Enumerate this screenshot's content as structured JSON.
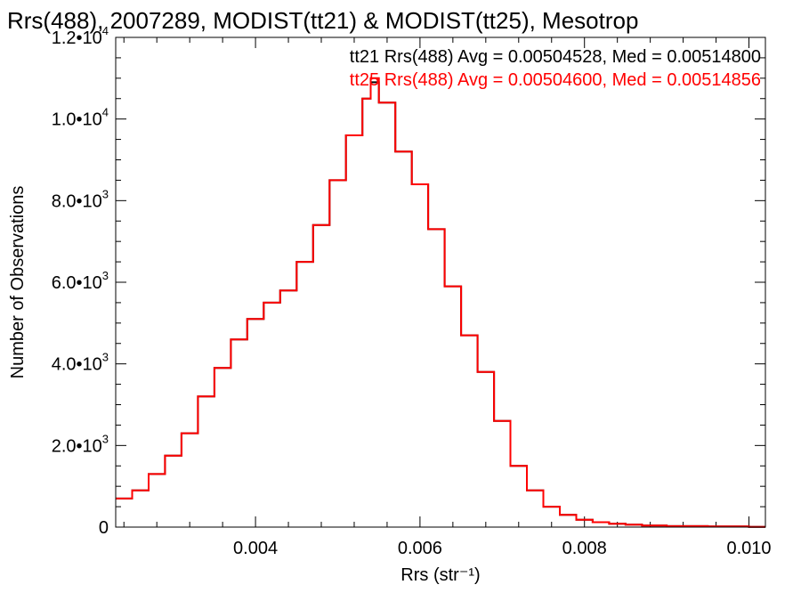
{
  "chart_data": {
    "type": "line",
    "title": "Rrs(488), 2007289, MODIST(tt21) & MODIST(tt25), Mesotrop",
    "xlabel": "Rrs (str⁻¹)",
    "ylabel": "Number of Observations",
    "xlim": [
      0.0023,
      0.0102
    ],
    "ylim": [
      0,
      12000
    ],
    "x_ticks": [
      {
        "value": 0.004,
        "label": "0.004"
      },
      {
        "value": 0.006,
        "label": "0.006"
      },
      {
        "value": 0.008,
        "label": "0.008"
      },
      {
        "value": 0.01,
        "label": "0.010"
      }
    ],
    "y_ticks": [
      {
        "value": 0,
        "mantissa": "0",
        "exponent": ""
      },
      {
        "value": 2000,
        "mantissa": "2.0•10",
        "exponent": "3"
      },
      {
        "value": 4000,
        "mantissa": "4.0•10",
        "exponent": "3"
      },
      {
        "value": 6000,
        "mantissa": "6.0•10",
        "exponent": "3"
      },
      {
        "value": 8000,
        "mantissa": "8.0•10",
        "exponent": "3"
      },
      {
        "value": 10000,
        "mantissa": "1.0•10",
        "exponent": "4"
      },
      {
        "value": 12000,
        "mantissa": "1.2•10",
        "exponent": "4"
      }
    ],
    "grid": false,
    "legend_placement": "top-right",
    "series": [
      {
        "name": "tt21",
        "color": "#000000",
        "label": "tt21 Rrs(488) Avg = 0.00504528, Med = 0.00514800",
        "x": [
          0.0023,
          0.0025,
          0.0027,
          0.0029,
          0.0031,
          0.0033,
          0.0035,
          0.0037,
          0.0039,
          0.0041,
          0.0043,
          0.0045,
          0.0047,
          0.0049,
          0.0051,
          0.0053,
          0.0054,
          0.0055,
          0.0057,
          0.0059,
          0.0061,
          0.0063,
          0.0065,
          0.0067,
          0.0069,
          0.0071,
          0.0073,
          0.0075,
          0.0077,
          0.0079,
          0.0081,
          0.0083,
          0.0085,
          0.0087,
          0.009,
          0.0095,
          0.01,
          0.0102
        ],
        "y": [
          700,
          900,
          1300,
          1750,
          2300,
          3200,
          3900,
          4600,
          5100,
          5500,
          5800,
          6500,
          7400,
          8500,
          9600,
          10500,
          10900,
          10400,
          9200,
          8400,
          7300,
          5900,
          4700,
          3800,
          2600,
          1500,
          900,
          500,
          300,
          180,
          120,
          80,
          60,
          40,
          25,
          15,
          5,
          5
        ]
      },
      {
        "name": "tt25",
        "color": "#ff0000",
        "label": "tt25 Rrs(488) Avg = 0.00504600, Med = 0.00514856",
        "x": [
          0.0023,
          0.0025,
          0.0027,
          0.0029,
          0.0031,
          0.0033,
          0.0035,
          0.0037,
          0.0039,
          0.0041,
          0.0043,
          0.0045,
          0.0047,
          0.0049,
          0.0051,
          0.0053,
          0.0054,
          0.0055,
          0.0057,
          0.0059,
          0.0061,
          0.0063,
          0.0065,
          0.0067,
          0.0069,
          0.0071,
          0.0073,
          0.0075,
          0.0077,
          0.0079,
          0.0081,
          0.0083,
          0.0085,
          0.0087,
          0.009,
          0.0095,
          0.01,
          0.0102
        ],
        "y": [
          700,
          900,
          1300,
          1750,
          2300,
          3200,
          3900,
          4600,
          5100,
          5500,
          5800,
          6500,
          7400,
          8500,
          9600,
          10500,
          11000,
          10400,
          9200,
          8400,
          7300,
          5900,
          4700,
          3800,
          2600,
          1500,
          900,
          500,
          300,
          180,
          120,
          80,
          60,
          40,
          25,
          15,
          5,
          5
        ]
      }
    ]
  }
}
